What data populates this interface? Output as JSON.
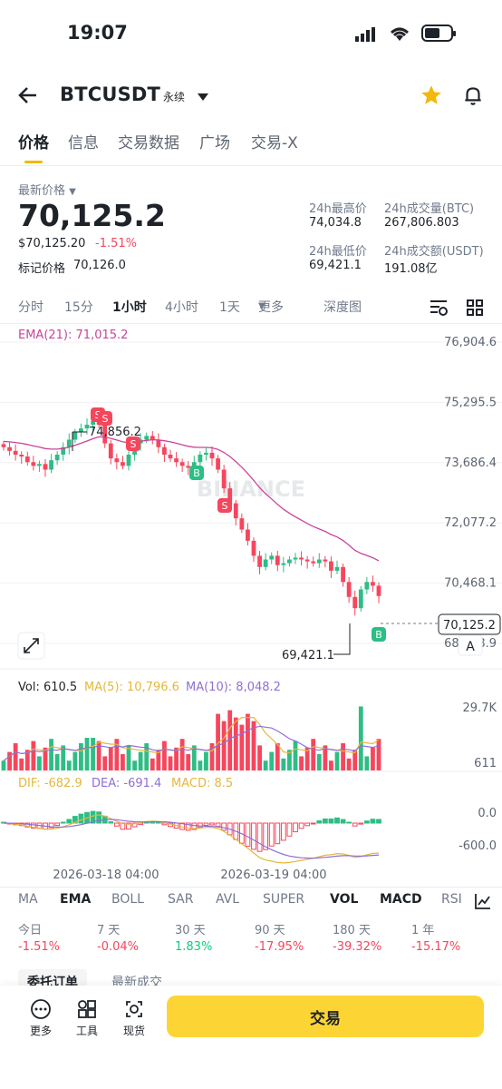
{
  "status": {
    "time": "19:07"
  },
  "header": {
    "symbol": "BTCUSDT",
    "contract_type": "永续"
  },
  "tabs": [
    "价格",
    "信息",
    "交易数据",
    "广场",
    "交易-X"
  ],
  "price": {
    "latest_label": "最新价格",
    "last": "70,125.2",
    "usd": "$70,125.20",
    "change": "-1.51%",
    "mark_label": "标记价格",
    "mark": "70,126.0",
    "high_label": "24h最高价",
    "high": "74,034.8",
    "low_label": "24h最低价",
    "low": "69,421.1",
    "vol_btc_label": "24h成交量(BTC)",
    "vol_btc": "267,806.803",
    "vol_usdt_label": "24h成交额(USDT)",
    "vol_usdt": "191.08亿"
  },
  "intervals": [
    "分时",
    "15分",
    "1小时",
    "4小时",
    "1天",
    "更多",
    "深度图"
  ],
  "chart": {
    "ema_label": "EMA(21): 71,015.2",
    "y_ticks": [
      "76,904.6",
      "75,295.5",
      "73,686.4",
      "72,077.2",
      "70,468.1",
      "68,858.9"
    ],
    "current_price": "70,125.2",
    "high_marker": "74,856.2",
    "low_marker": "69,421.1",
    "watermark": "BINANCE",
    "auto_label": "A",
    "vol_label": "Vol: 610.5",
    "ma5_label": "MA(5): 10,796.6",
    "ma10_label": "MA(10): 8,048.2",
    "vol_ticks": [
      "29.7K",
      "611"
    ],
    "dif_label": "DIF: -682.9",
    "dea_label": "DEA: -691.4",
    "macd_label": "MACD: 8.5",
    "macd_ticks": [
      "0.0",
      "-600.0"
    ],
    "x_ticks": [
      "2026-03-18 04:00",
      "2026-03-19 04:00"
    ]
  },
  "indicators": [
    "MA",
    "EMA",
    "BOLL",
    "SAR",
    "AVL",
    "SUPER",
    "VOL",
    "MACD",
    "RSI"
  ],
  "performance": [
    {
      "label": "今日",
      "value": "-1.51%"
    },
    {
      "label": "7 天",
      "value": "-0.04%"
    },
    {
      "label": "30 天",
      "value": "1.83%"
    },
    {
      "label": "90 天",
      "value": "-17.95%"
    },
    {
      "label": "180 天",
      "value": "-39.32%"
    },
    {
      "label": "1 年",
      "value": "-15.17%"
    }
  ],
  "order_tabs": [
    "委托订单",
    "最新成交"
  ],
  "bottom": {
    "more": "更多",
    "tools": "工具",
    "spot": "现货",
    "trade": "交易"
  },
  "chart_data": {
    "type": "candlestick",
    "title": "BTCUSDT 1小时",
    "x_labels": [
      "2026-03-18 04:00",
      "2026-03-19 04:00"
    ],
    "ylim": [
      68858.9,
      76904.6
    ],
    "closes_approx": [
      74100,
      74000,
      73900,
      73850,
      73700,
      73600,
      73650,
      73500,
      73750,
      73900,
      74100,
      74300,
      74500,
      74600,
      74700,
      74800,
      74700,
      74200,
      73800,
      73700,
      73600,
      73900,
      74200,
      74300,
      74400,
      74300,
      74100,
      73900,
      73800,
      73700,
      73600,
      73550,
      73700,
      73900,
      73950,
      73800,
      73500,
      73000,
      72600,
      72200,
      71900,
      71600,
      71200,
      70900,
      71100,
      71200,
      70950,
      71000,
      71100,
      71150,
      71100,
      71050,
      71000,
      71100,
      71050,
      70800,
      70900,
      70500,
      70100,
      69800,
      70300,
      70500,
      70400,
      70125
    ]
  }
}
